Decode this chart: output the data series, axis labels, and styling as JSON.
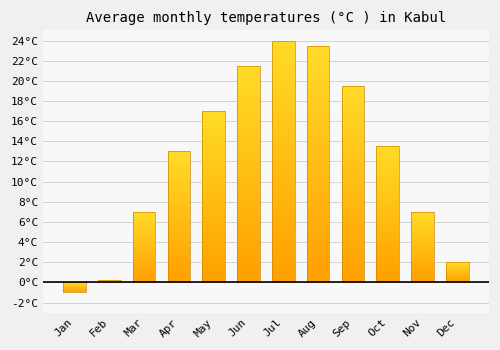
{
  "months": [
    "Jan",
    "Feb",
    "Mar",
    "Apr",
    "May",
    "Jun",
    "Jul",
    "Aug",
    "Sep",
    "Oct",
    "Nov",
    "Dec"
  ],
  "values": [
    -1.0,
    0.2,
    7.0,
    13.0,
    17.0,
    21.5,
    24.0,
    23.5,
    19.5,
    13.5,
    7.0,
    2.0
  ],
  "bar_color_main": "#FFAA00",
  "bar_color_light": "#FFD060",
  "bar_edge_color": "#CC8800",
  "title": "Average monthly temperatures (°C ) in Kabul",
  "ylim": [
    -3,
    25
  ],
  "yticks": [
    -2,
    0,
    2,
    4,
    6,
    8,
    10,
    12,
    14,
    16,
    18,
    20,
    22,
    24
  ],
  "background_color": "#f0f0f0",
  "plot_bg_color": "#f8f8f8",
  "grid_color": "#cccccc",
  "title_fontsize": 10,
  "axis_label_fontsize": 8,
  "font_family": "monospace"
}
